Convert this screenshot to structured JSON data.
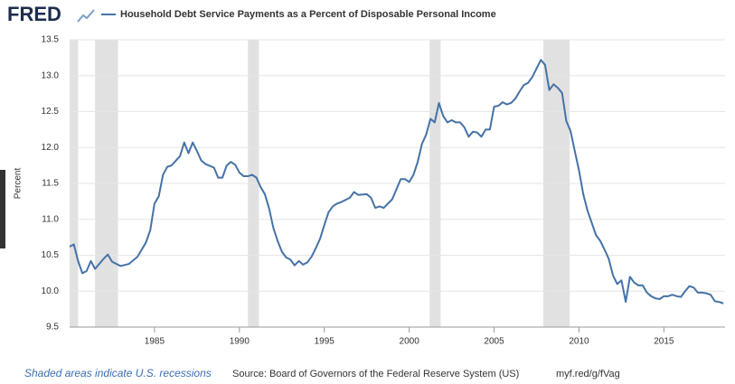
{
  "logo": "FRED",
  "chart_data": {
    "type": "line",
    "y_label": "Percent",
    "series": [
      {
        "name": "Household Debt Service Payments as a Percent of Disposable Personal Income",
        "color": "#4572a7",
        "values": [
          10.62,
          10.65,
          10.42,
          10.25,
          10.28,
          10.42,
          10.31,
          10.38,
          10.45,
          10.51,
          10.41,
          10.38,
          10.35,
          10.38,
          10.48,
          10.68,
          10.85,
          11.22,
          11.32,
          11.62,
          11.73,
          11.75,
          11.88,
          12.07,
          11.92,
          12.07,
          11.95,
          11.82,
          11.77,
          11.72,
          11.58,
          11.58,
          11.75,
          11.8,
          11.76,
          11.65,
          11.6,
          11.6,
          11.62,
          11.58,
          11.45,
          11.35,
          11.15,
          10.88,
          10.7,
          10.55,
          10.47,
          10.44,
          10.36,
          10.42,
          10.37,
          10.4,
          10.48,
          10.6,
          10.73,
          10.92,
          11.1,
          11.18,
          11.22,
          11.24,
          11.3,
          11.38,
          11.34,
          11.35,
          11.3,
          11.16,
          11.18,
          11.16,
          11.22,
          11.28,
          11.42,
          11.56,
          11.56,
          11.52,
          11.62,
          11.8,
          12.05,
          12.18,
          12.4,
          12.35,
          12.62,
          12.44,
          12.35,
          12.38,
          12.35,
          12.35,
          12.28,
          12.15,
          12.22,
          12.21,
          12.15,
          12.25,
          12.25,
          12.57,
          12.58,
          12.63,
          12.6,
          12.62,
          12.68,
          12.78,
          12.87,
          12.9,
          12.98,
          13.1,
          13.22,
          13.15,
          12.8,
          12.88,
          12.83,
          12.76,
          12.37,
          12.23,
          11.95,
          11.68,
          11.35,
          11.12,
          10.95,
          10.78,
          10.7,
          10.58,
          10.45,
          10.22,
          10.1,
          10.15,
          9.85,
          10.2,
          10.12,
          10.08,
          10.08,
          9.98,
          9.93,
          9.9,
          9.89,
          9.93,
          9.93,
          9.95,
          9.93,
          9.92,
          10.0,
          10.07,
          10.05,
          9.98,
          9.98,
          9.97,
          9.95,
          9.86,
          9.85,
          9.83
        ]
      }
    ],
    "x": [
      1980,
      1980.25,
      1980.5,
      1980.75,
      1981,
      1981.25,
      1981.5,
      1981.75,
      1982,
      1982.25,
      1982.5,
      1982.75,
      1983,
      1983.5,
      1984,
      1984.5,
      1984.75,
      1985,
      1985.25,
      1985.5,
      1985.75,
      1986,
      1986.5,
      1986.75,
      1987,
      1987.25,
      1987.5,
      1987.75,
      1988,
      1988.5,
      1988.75,
      1989,
      1989.25,
      1989.5,
      1989.75,
      1990,
      1990.25,
      1990.5,
      1990.75,
      1991,
      1991.25,
      1991.5,
      1991.75,
      1992,
      1992.25,
      1992.5,
      1992.75,
      1993,
      1993.25,
      1993.5,
      1993.75,
      1994,
      1994.25,
      1994.5,
      1994.75,
      1995,
      1995.25,
      1995.5,
      1995.75,
      1996,
      1996.5,
      1996.75,
      1997,
      1997.5,
      1997.75,
      1998,
      1998.25,
      1998.5,
      1998.75,
      1999,
      1999.25,
      1999.5,
      1999.75,
      2000,
      2000.25,
      2000.5,
      2000.75,
      2001,
      2001.25,
      2001.5,
      2001.75,
      2002,
      2002.25,
      2002.5,
      2002.75,
      2003,
      2003.25,
      2003.5,
      2003.75,
      2004,
      2004.25,
      2004.5,
      2004.75,
      2005,
      2005.25,
      2005.5,
      2005.75,
      2006,
      2006.25,
      2006.5,
      2006.75,
      2007,
      2007.25,
      2007.5,
      2007.75,
      2008,
      2008.25,
      2008.5,
      2008.75,
      2009,
      2009.25,
      2009.5,
      2009.75,
      2010,
      2010.25,
      2010.5,
      2010.75,
      2011,
      2011.25,
      2011.5,
      2011.75,
      2012,
      2012.25,
      2012.5,
      2012.75,
      2013,
      2013.25,
      2013.5,
      2013.75,
      2014,
      2014.25,
      2014.5,
      2014.75,
      2015,
      2015.25,
      2015.5,
      2015.75,
      2016,
      2016.25,
      2016.5,
      2016.75,
      2017,
      2017.25,
      2017.5,
      2017.75,
      2018,
      2018.25,
      2018.5
    ],
    "xlim": [
      1980,
      2018.6
    ],
    "xticks": [
      1985,
      1990,
      1995,
      2000,
      2005,
      2010,
      2015
    ],
    "ylim": [
      9.5,
      13.5
    ],
    "yticks": [
      9.5,
      {
        "value": 10,
        "label": "10.0"
      },
      10.5,
      {
        "value": 11,
        "label": "11.0"
      },
      11.5,
      {
        "value": 12,
        "label": "12.0"
      },
      12.5,
      {
        "value": 13,
        "label": "13.0"
      },
      13.5
    ],
    "grid": true,
    "recessions": [
      [
        1980,
        1980.5
      ],
      [
        1981.5,
        1982.85
      ],
      [
        1990.5,
        1991.15
      ],
      [
        2001.2,
        2001.85
      ],
      [
        2007.9,
        2009.45
      ]
    ],
    "recession_color": "#e1e1e1"
  },
  "footer": {
    "note": "Shaded areas indicate U.S. recessions",
    "source": "Source: Board of Governors of the Federal Reserve System (US)",
    "link": "myf.red/g/fVag"
  }
}
